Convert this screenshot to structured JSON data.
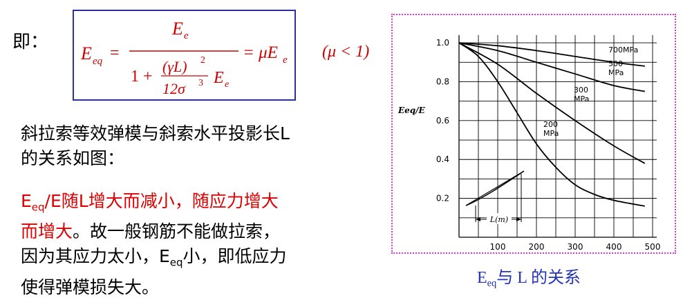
{
  "intro_label": "即：",
  "formula": {
    "lhs": "E",
    "lhs_sub": "eq",
    "num": "E",
    "num_sub": "e",
    "den_one": "1 +",
    "den_frac_num": "(γL)",
    "den_frac_num_exp": "2",
    "den_frac_den": "12σ",
    "den_frac_den_exp": "3",
    "den_tail": "E",
    "den_tail_sub": "e",
    "rhs": "= μE",
    "rhs_sub": "e",
    "condition": "(μ < 1)"
  },
  "para1": {
    "line1": "斜拉索等效弹模与斜索水平投影长L",
    "line2": "的关系如图："
  },
  "para2": {
    "red1_pre": "E",
    "red1_sub": "eq",
    "red1_post": "/E随L增大而减小，随应力增大",
    "red2": "而增大",
    "black2": "。故一般钢筋不能做拉索，",
    "line3_pre": "因为其应力太小，E",
    "line3_sub": "eq",
    "line3_post": "小，即低应力",
    "line4": "使得弹模损失大。"
  },
  "caption": {
    "pre": "E",
    "sub": "eq",
    "post": "与 L 的关系"
  },
  "chart_data": {
    "type": "line",
    "ylabel": "Eeq/E",
    "x_ticks": [
      "100",
      "200",
      "300",
      "400",
      "500"
    ],
    "y_ticks": [
      "1.0",
      "0.8",
      "0.6",
      "0.4",
      "0.2"
    ],
    "xlim": [
      0,
      500
    ],
    "ylim": [
      0,
      1.05
    ],
    "grid": true,
    "series": [
      {
        "name": "700MPa",
        "label_lines": [
          "700MPa"
        ],
        "x": [
          0,
          100,
          200,
          300,
          400,
          480
        ],
        "y": [
          1.0,
          0.985,
          0.96,
          0.93,
          0.9,
          0.88
        ]
      },
      {
        "name": "500 MPa",
        "label_lines": [
          "500",
          "MPa"
        ],
        "x": [
          0,
          100,
          200,
          300,
          400,
          480
        ],
        "y": [
          1.0,
          0.96,
          0.9,
          0.84,
          0.78,
          0.75
        ]
      },
      {
        "name": "300 MPa",
        "label_lines": [
          "300",
          "MPa"
        ],
        "x": [
          0,
          100,
          200,
          300,
          400,
          480
        ],
        "y": [
          1.0,
          0.89,
          0.74,
          0.6,
          0.47,
          0.38
        ]
      },
      {
        "name": "200 MPa",
        "label_lines": [
          "200",
          "MPa"
        ],
        "x": [
          0,
          50,
          100,
          150,
          200,
          250,
          300,
          350,
          400,
          480
        ],
        "y": [
          1.0,
          0.93,
          0.8,
          0.64,
          0.48,
          0.36,
          0.27,
          0.22,
          0.19,
          0.16
        ]
      }
    ],
    "annotation": {
      "label": "L(m)"
    }
  }
}
